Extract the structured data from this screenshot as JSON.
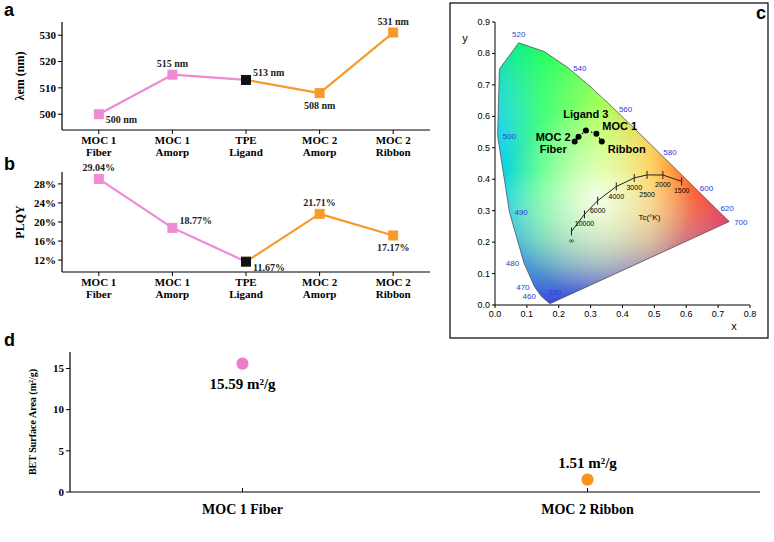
{
  "chart_data": [
    {
      "panel": "a",
      "type": "line",
      "categories": [
        "MOC 1 Fiber",
        "MOC 1 Amorp",
        "TPE Ligand",
        "MOC 2 Amorp",
        "MOC 2 Ribbon"
      ],
      "values": [
        500,
        515,
        513,
        508,
        531
      ],
      "value_labels": [
        "500 nm",
        "515 nm",
        "513 nm",
        "508 nm",
        "531 nm"
      ],
      "data_labels": true,
      "colors": [
        "#f08ad4",
        "#f08ad4",
        "#111111",
        "#f79a2e",
        "#f79a2e"
      ],
      "marker": "square",
      "ylabel": "λem (nm)",
      "ylim": [
        494,
        535
      ],
      "yticks": [
        500,
        510,
        520,
        530
      ],
      "grid": false
    },
    {
      "panel": "b",
      "type": "line",
      "categories": [
        "MOC 1 Fiber",
        "MOC 1 Amorp",
        "TPE Ligand",
        "MOC 2 Amorp",
        "MOC 2 Ribbon"
      ],
      "values": [
        29.04,
        18.77,
        11.67,
        21.71,
        17.17
      ],
      "value_labels": [
        "29.04%",
        "18.77%",
        "11.67%",
        "21.71%",
        "17.17%"
      ],
      "data_labels": true,
      "colors": [
        "#f08ad4",
        "#f08ad4",
        "#111111",
        "#f79a2e",
        "#f79a2e"
      ],
      "marker": "square",
      "ylabel": "PLQY",
      "ylim": [
        9.5,
        30.5
      ],
      "yticks": [
        {
          "value": 12,
          "label": "12%"
        },
        {
          "value": 16,
          "label": "16%"
        },
        {
          "value": 20,
          "label": "20%"
        },
        {
          "value": 24,
          "label": "24%"
        },
        {
          "value": 28,
          "label": "28%"
        }
      ],
      "grid": false
    },
    {
      "panel": "c",
      "type": "scatter",
      "labels": [
        "Fiber",
        "MOC 2",
        "Ligand 3",
        "MOC 1",
        "Ribbon"
      ],
      "x": [
        0.25,
        0.262,
        0.285,
        0.318,
        0.335
      ],
      "y": [
        0.52,
        0.535,
        0.555,
        0.545,
        0.52
      ],
      "color": "#000000",
      "marker": "circle",
      "line_style": "dotted",
      "xlabel": "x",
      "ylabel": "y",
      "xlim": [
        0,
        0.8
      ],
      "ylim": [
        0,
        0.9
      ],
      "xticks": [
        {
          "value": 0,
          "label": "0.0"
        },
        0.1,
        0.2,
        0.3,
        0.4,
        0.5,
        0.6,
        0.7,
        0.8
      ],
      "yticks": [
        {
          "value": 0,
          "label": "0.0"
        },
        0.1,
        0.2,
        0.3,
        0.4,
        0.5,
        0.6,
        0.7,
        0.8,
        0.9
      ],
      "locus": {
        "labels": [
          380,
          null,
          null,
          null,
          460,
          470,
          480,
          490,
          500,
          null,
          520,
          null,
          540,
          null,
          560,
          null,
          580,
          null,
          600,
          620,
          700
        ],
        "x": [
          0.1741,
          0.1714,
          0.1644,
          0.1566,
          0.144,
          0.1241,
          0.0913,
          0.0454,
          0.0082,
          0.0139,
          0.0743,
          0.1547,
          0.2296,
          0.3016,
          0.3731,
          0.4441,
          0.5125,
          0.5752,
          0.627,
          0.6915,
          0.7347
        ],
        "y": [
          0.005,
          0.0051,
          0.0109,
          0.0177,
          0.0297,
          0.0578,
          0.1327,
          0.295,
          0.5384,
          0.7502,
          0.8338,
          0.8059,
          0.7543,
          0.6923,
          0.6245,
          0.5547,
          0.4866,
          0.4242,
          0.3725,
          0.3083,
          0.2653
        ]
      },
      "planck": {
        "title": "Tc(°K)",
        "labels": [
          "∞",
          "10000",
          "6000",
          "4000",
          "3000",
          "2500",
          "2000",
          "1500"
        ],
        "x": [
          0.2399,
          0.2807,
          0.3221,
          0.3805,
          0.4369,
          0.477,
          0.5267,
          0.5857
        ],
        "y": [
          0.234,
          0.2883,
          0.3318,
          0.3768,
          0.4041,
          0.4137,
          0.4133,
          0.3931
        ]
      }
    },
    {
      "panel": "d",
      "type": "scatter",
      "categories": [
        "MOC 1 Fiber",
        "MOC 2 Ribbon"
      ],
      "values": [
        15.59,
        1.51
      ],
      "value_labels": [
        "15.59 m²/g",
        "1.51 m²/g"
      ],
      "data_labels": true,
      "colors": [
        "#f07acb",
        "#f7941d"
      ],
      "marker": "circle",
      "ylabel": "BET Surface Area (m²/g)",
      "ylim": [
        0,
        17
      ],
      "yticks": [
        0,
        5,
        10,
        15
      ],
      "grid": false
    }
  ]
}
